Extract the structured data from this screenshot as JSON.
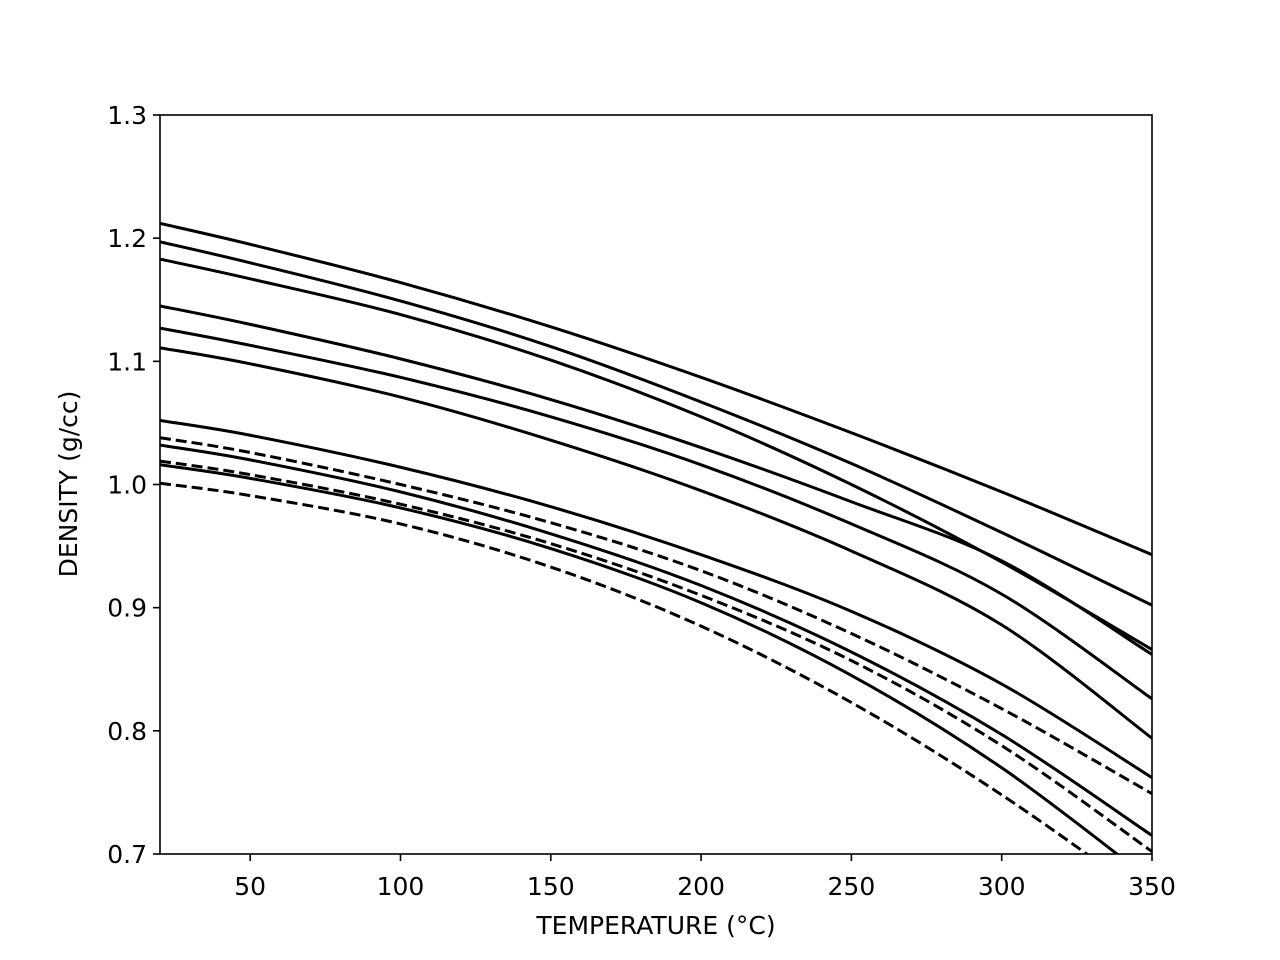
{
  "chart_data": {
    "type": "line",
    "title": "",
    "xlabel": "TEMPERATURE (°C)",
    "ylabel": "DENSITY (g/cc)",
    "xlim": [
      20,
      350
    ],
    "ylim": [
      0.7,
      1.3
    ],
    "x_ticks": [
      50,
      100,
      150,
      200,
      250,
      300,
      350
    ],
    "y_ticks": [
      0.7,
      0.8,
      0.9,
      1.0,
      1.1,
      1.2,
      1.3
    ],
    "x_tick_labels": [
      "50",
      "100",
      "150",
      "200",
      "250",
      "300",
      "350"
    ],
    "y_tick_labels": [
      "0.7",
      "0.8",
      "0.9",
      "1.0",
      "1.1",
      "1.2",
      "1.3"
    ],
    "grid": false,
    "legend": null,
    "line_color": "#000000",
    "x": [
      20,
      50,
      100,
      150,
      200,
      250,
      300,
      350
    ],
    "series": [
      {
        "style": "solid",
        "values": [
          1.212,
          1.195,
          1.164,
          1.128,
          1.087,
          1.042,
          0.994,
          0.943
        ]
      },
      {
        "style": "solid",
        "values": [
          1.197,
          1.18,
          1.149,
          1.112,
          1.067,
          1.017,
          0.961,
          0.902
        ]
      },
      {
        "style": "solid",
        "values": [
          1.183,
          1.167,
          1.138,
          1.101,
          1.055,
          1.0,
          0.937,
          0.866
        ]
      },
      {
        "style": "solid",
        "values": [
          1.145,
          1.13,
          1.102,
          1.069,
          1.03,
          0.986,
          0.938,
          0.862
        ]
      },
      {
        "style": "solid",
        "values": [
          1.127,
          1.113,
          1.087,
          1.055,
          1.016,
          0.968,
          0.911,
          0.826
        ]
      },
      {
        "style": "solid",
        "values": [
          1.111,
          1.098,
          1.071,
          1.036,
          0.995,
          0.946,
          0.886,
          0.794
        ]
      },
      {
        "style": "solid",
        "values": [
          1.052,
          1.04,
          1.014,
          0.982,
          0.943,
          0.897,
          0.838,
          0.762
        ]
      },
      {
        "style": "dashed",
        "values": [
          1.038,
          1.026,
          1.0,
          0.969,
          0.93,
          0.879,
          0.818,
          0.749
        ]
      },
      {
        "style": "solid",
        "values": [
          1.032,
          1.02,
          0.994,
          0.96,
          0.918,
          0.864,
          0.797,
          0.715
        ]
      },
      {
        "style": "dashed",
        "values": [
          1.019,
          1.008,
          0.984,
          0.952,
          0.91,
          0.857,
          0.788,
          0.702
        ]
      },
      {
        "style": "solid",
        "values": [
          1.016,
          1.005,
          0.981,
          0.948,
          0.904,
          0.845,
          0.77,
          0.678
        ]
      },
      {
        "style": "dashed",
        "values": [
          1.001,
          0.991,
          0.968,
          0.933,
          0.885,
          0.823,
          0.748,
          0.662
        ]
      }
    ]
  }
}
